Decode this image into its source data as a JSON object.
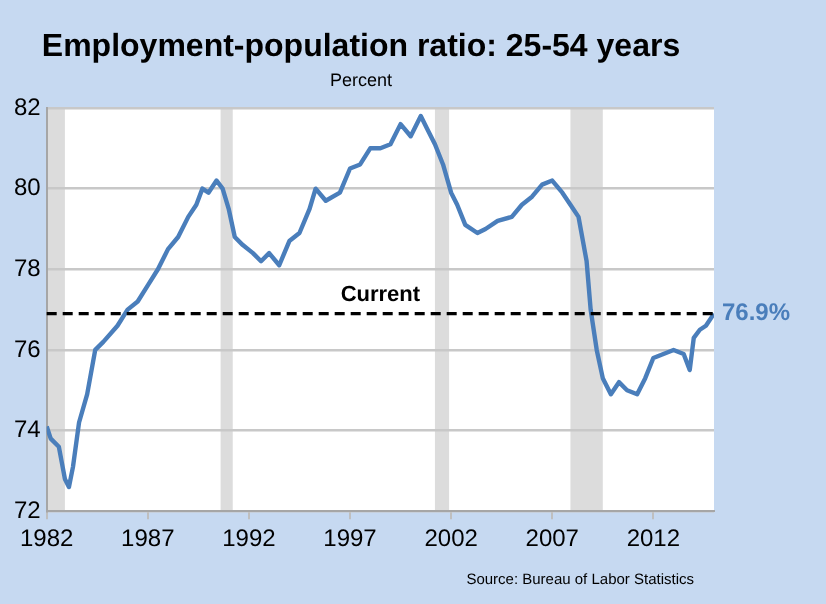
{
  "chart_data": {
    "type": "line",
    "title": "Employment-population ratio: 25-54 years",
    "subtitle": "Percent",
    "x": [
      1982.0,
      1982.2,
      1982.6,
      1982.9,
      1983.1,
      1983.3,
      1983.6,
      1984.0,
      1984.4,
      1984.8,
      1985.5,
      1986.0,
      1986.5,
      1987.0,
      1987.5,
      1988.0,
      1988.5,
      1989.0,
      1989.4,
      1989.7,
      1990.0,
      1990.4,
      1990.7,
      1991.0,
      1991.3,
      1991.7,
      1992.2,
      1992.6,
      1993.0,
      1993.5,
      1994.0,
      1994.5,
      1995.0,
      1995.3,
      1995.8,
      1996.5,
      1997.0,
      1997.5,
      1998.0,
      1998.5,
      1999.0,
      1999.5,
      2000.0,
      2000.5,
      2000.8,
      2001.2,
      2001.6,
      2002.0,
      2002.3,
      2002.7,
      2003.3,
      2003.7,
      2004.3,
      2005.0,
      2005.5,
      2006.0,
      2006.5,
      2007.0,
      2007.5,
      2007.9,
      2008.3,
      2008.7,
      2008.9,
      2009.2,
      2009.5,
      2009.9,
      2010.3,
      2010.7,
      2011.2,
      2011.6,
      2012.0,
      2012.5,
      2013.0,
      2013.5,
      2013.8,
      2014.0,
      2014.3,
      2014.6,
      2015.0
    ],
    "series": [
      {
        "color": "#4a7ebb",
        "values": [
          74.1,
          73.8,
          73.6,
          72.8,
          72.6,
          73.1,
          74.2,
          74.9,
          76.0,
          76.2,
          76.6,
          77.0,
          77.2,
          77.6,
          78.0,
          78.5,
          78.8,
          79.3,
          79.6,
          80.0,
          79.9,
          80.2,
          80.0,
          79.5,
          78.8,
          78.6,
          78.4,
          78.2,
          78.4,
          78.1,
          78.7,
          78.9,
          79.5,
          80.0,
          79.7,
          79.9,
          80.5,
          80.6,
          81.0,
          81.0,
          81.1,
          81.6,
          81.3,
          81.8,
          81.5,
          81.1,
          80.6,
          79.9,
          79.6,
          79.1,
          78.9,
          79.0,
          79.2,
          79.3,
          79.6,
          79.8,
          80.1,
          80.2,
          79.9,
          79.6,
          79.3,
          78.2,
          77.0,
          76.0,
          75.3,
          74.9,
          75.2,
          75.0,
          74.9,
          75.3,
          75.8,
          75.9,
          76.0,
          75.9,
          75.5,
          76.3,
          76.5,
          76.6,
          76.9
        ]
      }
    ],
    "xlim": [
      1982,
      2015
    ],
    "xticks": [
      1982,
      1987,
      1992,
      1997,
      2002,
      2007,
      2012
    ],
    "ylim": [
      72,
      82
    ],
    "yticks": [
      72,
      74,
      76,
      78,
      80,
      82
    ],
    "grid": "y",
    "legend": false,
    "marker": "none",
    "line_style": "solid",
    "ref_lines": [
      {
        "axis": "y",
        "value": 76.9,
        "label": "Current",
        "color": "#000000",
        "line_style": "dashed"
      }
    ],
    "bands": [
      {
        "axis": "x",
        "from": 1982,
        "to": 1982.9,
        "color": "#dcdcdc"
      },
      {
        "axis": "x",
        "from": 1990.6,
        "to": 1991.2,
        "color": "#dcdcdc"
      },
      {
        "axis": "x",
        "from": 2001.2,
        "to": 2001.9,
        "color": "#dcdcdc"
      },
      {
        "axis": "x",
        "from": 2007.9,
        "to": 2009.5,
        "color": "#dcdcdc"
      }
    ],
    "annotations": [
      {
        "text": "76.9%",
        "x": 2015,
        "y": 76.9
      },
      "Source: Bureau of Labor Statistics"
    ]
  }
}
